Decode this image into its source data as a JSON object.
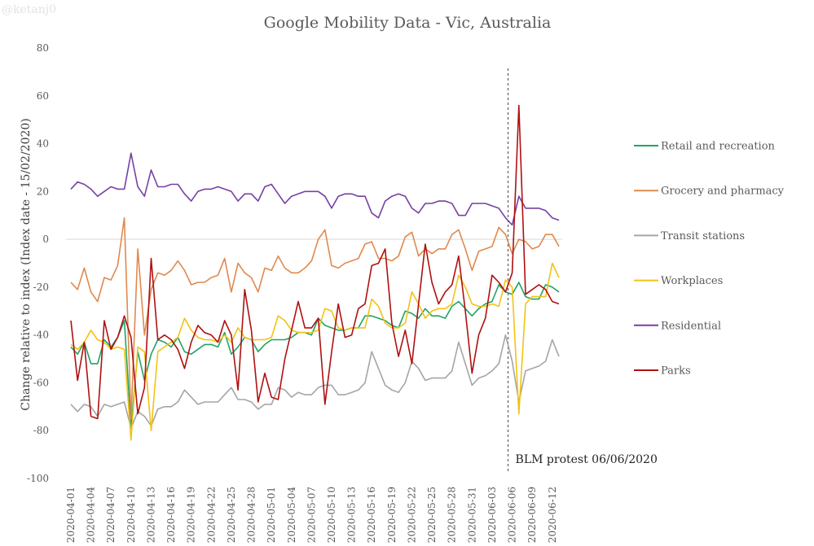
{
  "watermark": "@ketanj0",
  "chart_data": {
    "type": "line",
    "title": "Google Mobility Data - Vic, Australia",
    "xlabel": "",
    "ylabel": "Change relative to index (Index date - 15/02/2020)",
    "ylim": [
      -100,
      80
    ],
    "yticks": [
      80,
      60,
      40,
      20,
      0,
      -20,
      -40,
      -60,
      -80,
      -100
    ],
    "x_tick_every": 3,
    "grid": "zero line only",
    "legend_position": "right",
    "x": [
      "2020-04-01",
      "2020-04-02",
      "2020-04-03",
      "2020-04-04",
      "2020-04-05",
      "2020-04-06",
      "2020-04-07",
      "2020-04-08",
      "2020-04-09",
      "2020-04-10",
      "2020-04-11",
      "2020-04-12",
      "2020-04-13",
      "2020-04-14",
      "2020-04-15",
      "2020-04-16",
      "2020-04-17",
      "2020-04-18",
      "2020-04-19",
      "2020-04-20",
      "2020-04-21",
      "2020-04-22",
      "2020-04-23",
      "2020-04-24",
      "2020-04-25",
      "2020-04-26",
      "2020-04-27",
      "2020-04-28",
      "2020-04-29",
      "2020-04-30",
      "2020-05-01",
      "2020-05-02",
      "2020-05-03",
      "2020-05-04",
      "2020-05-05",
      "2020-05-06",
      "2020-05-07",
      "2020-05-08",
      "2020-05-09",
      "2020-05-10",
      "2020-05-11",
      "2020-05-12",
      "2020-05-13",
      "2020-05-14",
      "2020-05-15",
      "2020-05-16",
      "2020-05-17",
      "2020-05-18",
      "2020-05-19",
      "2020-05-20",
      "2020-05-21",
      "2020-05-22",
      "2020-05-23",
      "2020-05-24",
      "2020-05-25",
      "2020-05-26",
      "2020-05-27",
      "2020-05-28",
      "2020-05-29",
      "2020-05-30",
      "2020-05-31",
      "2020-06-01",
      "2020-06-02",
      "2020-06-03",
      "2020-06-04",
      "2020-06-05",
      "2020-06-06",
      "2020-06-07",
      "2020-06-08",
      "2020-06-09",
      "2020-06-10",
      "2020-06-11",
      "2020-06-12",
      "2020-06-13"
    ],
    "series": [
      {
        "name": "Retail and recreation",
        "color": "#21a366",
        "values": [
          -45,
          -48,
          -43,
          -52,
          -52,
          -42,
          -45,
          -41,
          -34,
          -79,
          -47,
          -59,
          -48,
          -42,
          -43,
          -45,
          -41,
          -47,
          -48,
          -46,
          -44,
          -44,
          -45,
          -39,
          -48,
          -45,
          -41,
          -42,
          -47,
          -44,
          -42,
          -42,
          -42,
          -41,
          -39,
          -39,
          -40,
          -33,
          -36,
          -37,
          -38,
          -38,
          -37,
          -37,
          -32,
          -32,
          -33,
          -34,
          -36,
          -37,
          -30,
          -31,
          -33,
          -29,
          -32,
          -32,
          -33,
          -28,
          -26,
          -29,
          -32,
          -29,
          -27,
          -26,
          -19,
          -22,
          -23,
          -18,
          -24,
          -25,
          -25,
          -19,
          -20,
          -22
        ]
      },
      {
        "name": "Grocery and pharmacy",
        "color": "#e0894e",
        "values": [
          -18,
          -21,
          -12,
          -22,
          -26,
          -16,
          -17,
          -11,
          9,
          -75,
          -4,
          -40,
          -21,
          -14,
          -15,
          -13,
          -9,
          -13,
          -19,
          -18,
          -18,
          -16,
          -15,
          -8,
          -22,
          -10,
          -14,
          -16,
          -22,
          -12,
          -13,
          -7,
          -12,
          -14,
          -14,
          -12,
          -9,
          0,
          4,
          -11,
          -12,
          -10,
          -9,
          -8,
          -2,
          -1,
          -8,
          -8,
          -9,
          -7,
          1,
          3,
          -7,
          -4,
          -6,
          -4,
          -4,
          2,
          4,
          -4,
          -13,
          -5,
          -4,
          -3,
          5,
          2,
          -6,
          0,
          -1,
          -4,
          -3,
          2,
          2,
          -3
        ]
      },
      {
        "name": "Transit stations",
        "color": "#a5a5a5",
        "values": [
          -69,
          -72,
          -69,
          -70,
          -74,
          -69,
          -70,
          -69,
          -68,
          -79,
          -72,
          -74,
          -78,
          -71,
          -70,
          -70,
          -68,
          -63,
          -66,
          -69,
          -68,
          -68,
          -68,
          -65,
          -62,
          -67,
          -67,
          -68,
          -71,
          -69,
          -69,
          -62,
          -63,
          -66,
          -64,
          -65,
          -65,
          -62,
          -61,
          -61,
          -65,
          -65,
          -64,
          -63,
          -60,
          -47,
          -54,
          -61,
          -63,
          -64,
          -60,
          -51,
          -54,
          -59,
          -58,
          -58,
          -58,
          -55,
          -43,
          -52,
          -61,
          -58,
          -57,
          -55,
          -52,
          -40,
          -51,
          -68,
          -55,
          -54,
          -53,
          -51,
          -42,
          -49
        ]
      },
      {
        "name": "Workplaces",
        "color": "#f2c314",
        "values": [
          -44,
          -46,
          -43,
          -38,
          -42,
          -43,
          -46,
          -45,
          -46,
          -84,
          -45,
          -47,
          -80,
          -47,
          -45,
          -43,
          -41,
          -33,
          -38,
          -41,
          -42,
          -42,
          -43,
          -40,
          -43,
          -37,
          -41,
          -42,
          -42,
          -42,
          -41,
          -32,
          -34,
          -38,
          -39,
          -39,
          -39,
          -38,
          -29,
          -30,
          -37,
          -38,
          -37,
          -37,
          -37,
          -25,
          -28,
          -35,
          -37,
          -37,
          -35,
          -22,
          -27,
          -33,
          -30,
          -29,
          -29,
          -27,
          -15,
          -20,
          -27,
          -28,
          -28,
          -27,
          -28,
          -17,
          -20,
          -73,
          -27,
          -24,
          -24,
          -24,
          -10,
          -16
        ]
      },
      {
        "name": "Residential",
        "color": "#7541a3",
        "values": [
          21,
          24,
          23,
          21,
          18,
          20,
          22,
          21,
          21,
          36,
          22,
          18,
          29,
          22,
          22,
          23,
          23,
          19,
          16,
          20,
          21,
          21,
          22,
          21,
          20,
          16,
          19,
          19,
          16,
          22,
          23,
          19,
          15,
          18,
          19,
          20,
          20,
          20,
          18,
          13,
          18,
          19,
          19,
          18,
          18,
          11,
          9,
          16,
          18,
          19,
          18,
          13,
          11,
          15,
          15,
          16,
          16,
          15,
          10,
          10,
          15,
          15,
          15,
          14,
          13,
          9,
          6,
          18,
          13,
          13,
          13,
          12,
          9,
          8
        ]
      },
      {
        "name": "Parks",
        "color": "#b01010",
        "values": [
          -34,
          -59,
          -43,
          -74,
          -75,
          -34,
          -46,
          -41,
          -32,
          -41,
          -73,
          -62,
          -8,
          -42,
          -40,
          -42,
          -46,
          -54,
          -43,
          -36,
          -39,
          -40,
          -43,
          -34,
          -40,
          -63,
          -21,
          -38,
          -68,
          -56,
          -66,
          -67,
          -50,
          -38,
          -26,
          -37,
          -37,
          -33,
          -69,
          -47,
          -27,
          -41,
          -40,
          -29,
          -27,
          -11,
          -10,
          -4,
          -35,
          -49,
          -38,
          -52,
          -27,
          -2,
          -18,
          -27,
          -22,
          -19,
          -7,
          -30,
          -56,
          -40,
          -33,
          -15,
          -18,
          -22,
          -14,
          56,
          -23,
          -21,
          -19,
          -21,
          -26,
          -27
        ]
      }
    ],
    "annotations": [
      {
        "type": "vertical-dashed-line",
        "x": "2020-06-06",
        "label": "BLM protest 06/06/2020"
      }
    ]
  }
}
